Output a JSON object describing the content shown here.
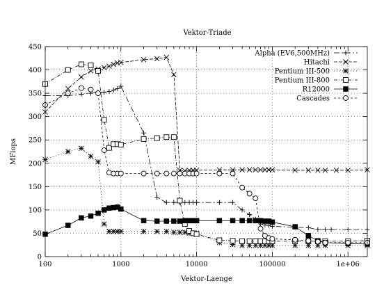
{
  "chart_data": {
    "type": "line",
    "title": "Vektor-Triade",
    "xlabel": "Vektor-Laenge",
    "ylabel": "MFlops",
    "xscale": "log",
    "xlim": [
      100,
      1800000
    ],
    "ylim": [
      0,
      450
    ],
    "xticks": [
      100,
      1000,
      10000,
      100000,
      1000000
    ],
    "xtick_labels": [
      "100",
      "1000",
      "10000",
      "100000",
      "1e+06"
    ],
    "yticks": [
      0,
      50,
      100,
      150,
      200,
      250,
      300,
      350,
      400,
      450
    ],
    "grid": true,
    "legend_position": "top-right",
    "series": [
      {
        "name": "Alpha (EV6,500MHz)",
        "marker": "plus",
        "dash": "8 3 2 3",
        "x": [
          100,
          200,
          300,
          400,
          500,
          600,
          700,
          800,
          900,
          1000,
          2000,
          3000,
          4000,
          5000,
          6000,
          7000,
          8000,
          9000,
          10000,
          20000,
          30000,
          40000,
          50000,
          60000,
          70000,
          80000,
          90000,
          100000,
          200000,
          300000,
          400000,
          500000,
          600000,
          1000000,
          1800000
        ],
        "y": [
          345,
          345,
          348,
          350,
          352,
          352,
          354,
          357,
          360,
          365,
          265,
          127,
          116,
          116,
          116,
          116,
          116,
          116,
          116,
          116,
          116,
          100,
          90,
          80,
          70,
          68,
          67,
          65,
          63,
          62,
          58,
          58,
          58,
          58,
          58
        ]
      },
      {
        "name": "Hitachi",
        "marker": "cross",
        "dash": "5 2",
        "x": [
          100,
          200,
          300,
          400,
          500,
          600,
          700,
          800,
          900,
          1000,
          2000,
          3000,
          4000,
          5000,
          6000,
          7000,
          8000,
          9000,
          10000,
          20000,
          30000,
          40000,
          50000,
          60000,
          70000,
          80000,
          90000,
          100000,
          200000,
          300000,
          400000,
          500000,
          700000,
          1000000,
          1800000
        ],
        "y": [
          310,
          360,
          385,
          398,
          402,
          405,
          408,
          412,
          415,
          416,
          422,
          424,
          427,
          390,
          185,
          184,
          185,
          185,
          185,
          186,
          186,
          186,
          186,
          186,
          186,
          186,
          186,
          186,
          185,
          185,
          185,
          185,
          185,
          185,
          186
        ]
      },
      {
        "name": "Pentium III-500",
        "marker": "star",
        "dash": "1 3",
        "x": [
          100,
          200,
          300,
          400,
          500,
          600,
          700,
          800,
          900,
          1000,
          2000,
          3000,
          4000,
          5000,
          6000,
          7000,
          8000,
          9000,
          10000,
          20000,
          30000,
          40000,
          50000,
          60000,
          70000,
          80000,
          90000,
          100000,
          200000,
          300000,
          400000,
          500000,
          1000000,
          1800000
        ],
        "y": [
          208,
          225,
          232,
          215,
          203,
          70,
          54,
          54,
          54,
          54,
          54,
          54,
          54,
          52,
          52,
          52,
          50,
          50,
          50,
          30,
          26,
          24,
          24,
          24,
          24,
          24,
          24,
          24,
          24,
          24,
          24,
          24,
          24,
          24
        ]
      },
      {
        "name": "Pentium III-800",
        "marker": "square",
        "dash": "5 2 1 2",
        "x": [
          100,
          200,
          300,
          400,
          500,
          600,
          700,
          800,
          900,
          1000,
          2000,
          3000,
          4000,
          5000,
          6000,
          7000,
          8000,
          9000,
          10000,
          20000,
          30000,
          40000,
          50000,
          60000,
          70000,
          80000,
          90000,
          100000,
          200000,
          300000,
          400000,
          500000,
          1000000,
          1800000
        ],
        "y": [
          370,
          400,
          412,
          410,
          398,
          293,
          233,
          241,
          241,
          240,
          252,
          254,
          256,
          256,
          120,
          70,
          55,
          50,
          48,
          35,
          34,
          33,
          33,
          33,
          33,
          33,
          33,
          33,
          33,
          33,
          33,
          33,
          33,
          34
        ]
      },
      {
        "name": "R12000",
        "marker": "filled-square",
        "dash": "",
        "x": [
          100,
          200,
          300,
          400,
          500,
          600,
          700,
          800,
          900,
          1000,
          2000,
          3000,
          4000,
          5000,
          6000,
          7000,
          8000,
          9000,
          10000,
          20000,
          30000,
          40000,
          50000,
          60000,
          70000,
          80000,
          90000,
          100000,
          200000,
          300000,
          400000,
          500000,
          1000000,
          1800000
        ],
        "y": [
          48,
          67,
          83,
          87,
          93,
          100,
          104,
          105,
          106,
          102,
          77,
          76,
          76,
          76,
          76,
          77,
          77,
          77,
          77,
          77,
          77,
          77,
          77,
          77,
          77,
          76,
          76,
          74,
          64,
          45,
          34,
          30,
          28,
          27
        ]
      },
      {
        "name": "Cascades",
        "marker": "circle",
        "dash": "3 3",
        "x": [
          100,
          200,
          300,
          400,
          500,
          600,
          700,
          800,
          900,
          1000,
          2000,
          3000,
          4000,
          5000,
          6000,
          7000,
          8000,
          9000,
          10000,
          20000,
          30000,
          40000,
          50000,
          60000,
          70000,
          80000,
          90000,
          100000,
          200000,
          300000,
          400000,
          500000,
          1000000,
          1800000
        ],
        "y": [
          325,
          350,
          361,
          358,
          350,
          228,
          180,
          178,
          178,
          178,
          178,
          178,
          178,
          178,
          178,
          178,
          178,
          178,
          178,
          178,
          178,
          148,
          135,
          125,
          60,
          45,
          40,
          38,
          36,
          34,
          32,
          30,
          30,
          30
        ]
      }
    ]
  }
}
